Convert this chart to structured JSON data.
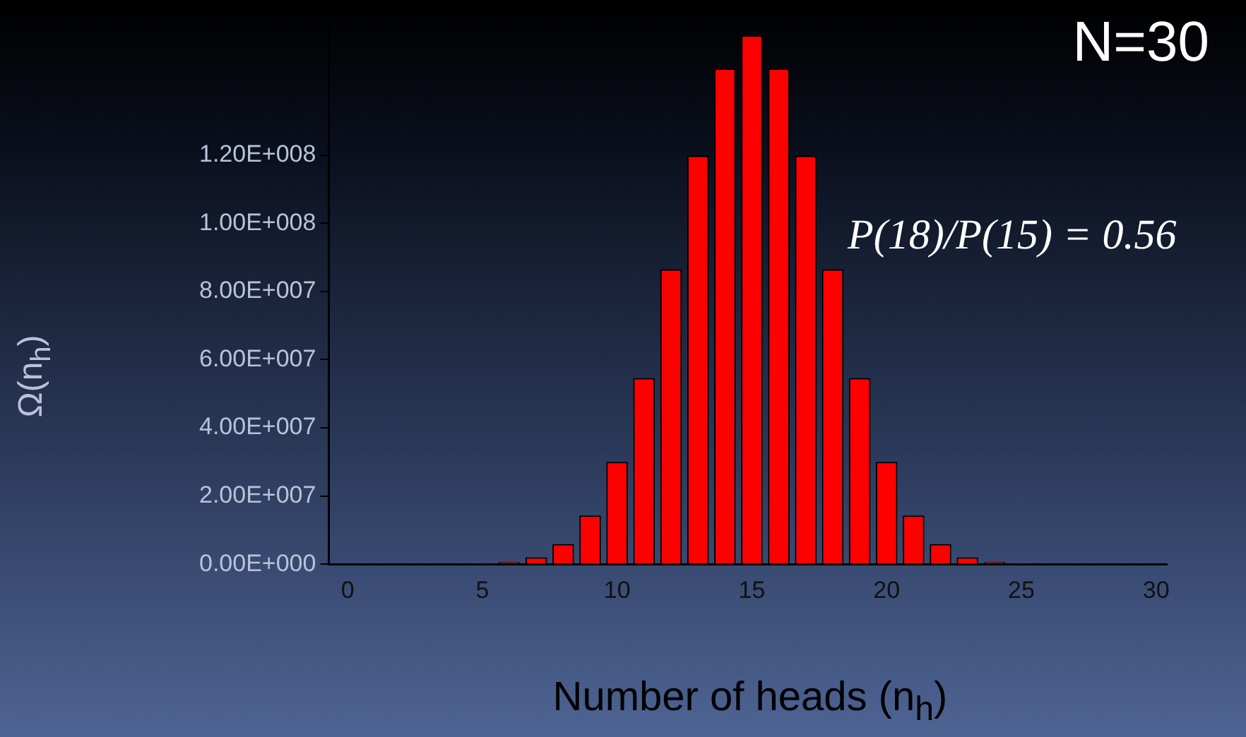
{
  "chart_data": {
    "type": "bar",
    "xlabel": "Number of heads (n$_{h}$)",
    "ylabel": "Ω(n$_{h}$)",
    "annotations": [
      "N=30",
      "P(18)/P(15) = 0.56"
    ],
    "x": [
      0,
      1,
      2,
      3,
      4,
      5,
      6,
      7,
      8,
      9,
      10,
      11,
      12,
      13,
      14,
      15,
      16,
      17,
      18,
      19,
      20,
      21,
      22,
      23,
      24,
      25,
      26,
      27,
      28,
      29,
      30
    ],
    "values": [
      0,
      0,
      0,
      0,
      0,
      100000,
      600000,
      2000000,
      5900000,
      14300000,
      30000000,
      54600000,
      86500000,
      119800000,
      145400000,
      155100000,
      145400000,
      119800000,
      86500000,
      54600000,
      30000000,
      14300000,
      5900000,
      2000000,
      600000,
      100000,
      0,
      0,
      0,
      0,
      0
    ],
    "color": "#ff0000",
    "xlim": [
      -0.7,
      30.4
    ],
    "xticks": [
      0,
      5,
      10,
      15,
      20,
      25,
      30
    ],
    "ylim": [
      0,
      160000000
    ],
    "yticks": [
      {
        "value": 0,
        "label": "0.00E+000"
      },
      {
        "value": 20000000,
        "label": "2.00E+007"
      },
      {
        "value": 40000000,
        "label": "4.00E+007"
      },
      {
        "value": 60000000,
        "label": "6.00E+007"
      },
      {
        "value": 80000000,
        "label": "8.00E+007"
      },
      {
        "value": 100000000,
        "label": "1.00E+008"
      },
      {
        "value": 120000000,
        "label": "1.20E+008"
      }
    ],
    "grid": false,
    "legend": false
  }
}
